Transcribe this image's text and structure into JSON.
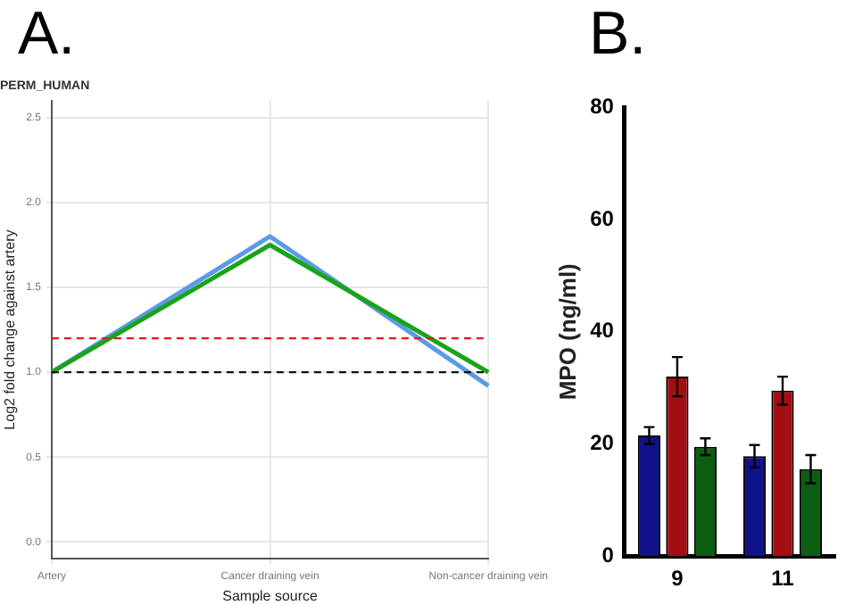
{
  "chart_data": [
    {
      "type": "line",
      "title": "PERM_HUMAN",
      "xlabel": "Sample source",
      "ylabel": "Log2 fold change against artery",
      "annotations": [
        "A."
      ],
      "categories": [
        "Artery",
        "Cancer draining vein",
        "Non-cancer draining vein"
      ],
      "series": [
        {
          "color": "#1aa31a",
          "values": [
            1.0,
            1.75,
            1.0
          ]
        },
        {
          "color": "#5b9be6",
          "values": [
            1.0,
            1.8,
            0.92
          ]
        }
      ],
      "ylim": [
        -0.1,
        2.6
      ],
      "yticks": [
        {
          "value": 0,
          "label": "0.0"
        },
        0.5,
        {
          "value": 1,
          "label": "1.0"
        },
        1.5,
        {
          "value": 2,
          "label": "2.0"
        },
        2.5
      ],
      "ref_lines": [
        {
          "axis": "y",
          "value": 1.2,
          "color": "#e8141e",
          "line_style": "dashed"
        },
        {
          "axis": "y",
          "value": 1.0,
          "color": "#111111",
          "line_style": "dashed"
        }
      ],
      "grid": true,
      "legend": false,
      "marker": "none"
    },
    {
      "type": "bar",
      "ylabel": "MPO (ng/ml)",
      "annotations": [
        "B."
      ],
      "categories": [
        "9",
        "11"
      ],
      "series": [
        {
          "color": "#10128a",
          "values": [
            21.5,
            17.8
          ],
          "errors": [
            1.5,
            2
          ]
        },
        {
          "color": "#a30e12",
          "values": [
            32,
            29.5
          ],
          "errors": [
            3.5,
            2.5
          ]
        },
        {
          "color": "#0b5e12",
          "values": [
            19.5,
            15.5
          ],
          "errors": [
            1.5,
            2.5
          ]
        }
      ],
      "ylim": [
        0,
        80
      ],
      "yticks": [
        0,
        20,
        40,
        60,
        80
      ],
      "grid": false,
      "legend": false
    }
  ]
}
